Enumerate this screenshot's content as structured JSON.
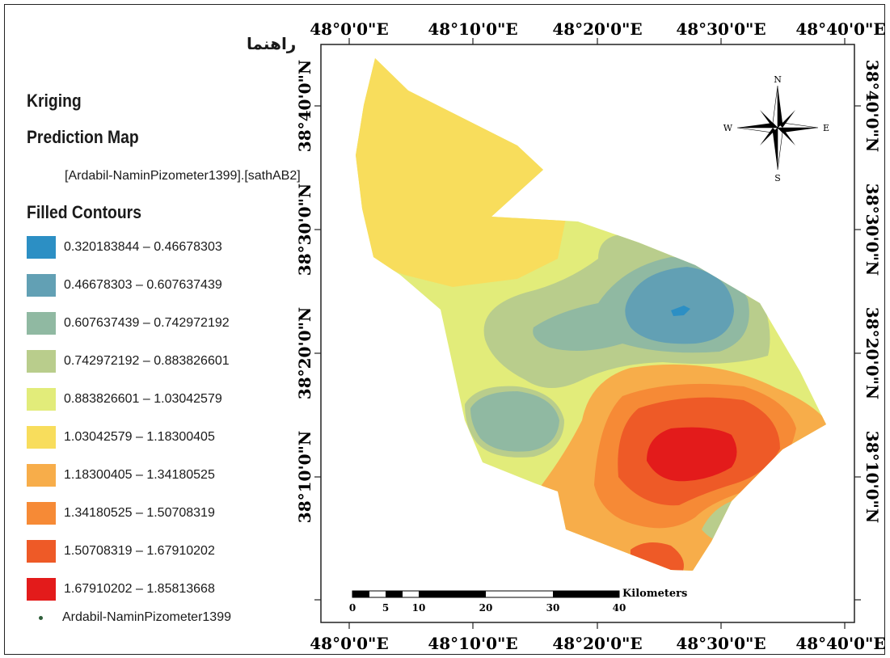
{
  "legend": {
    "guide_label": "راهنما",
    "title": "Kriging",
    "subtitle": "Prediction Map",
    "field": "[Ardabil-NaminPizometer1399].[sathAB2]",
    "contours_title": "Filled Contours",
    "classes": [
      {
        "label": "0.320183844 – 0.46678303",
        "color": "#2c8fc4"
      },
      {
        "label": "0.46678303 – 0.607637439",
        "color": "#62a0b4"
      },
      {
        "label": "0.607637439 – 0.742972192",
        "color": "#90b9a2"
      },
      {
        "label": "0.742972192 – 0.883826601",
        "color": "#b9cd8c"
      },
      {
        "label": "0.883826601 – 1.03042579",
        "color": "#e2ec7a"
      },
      {
        "label": "1.03042579 – 1.18300405",
        "color": "#f8dd5c"
      },
      {
        "label": "1.18300405 – 1.34180525",
        "color": "#f7ad4a"
      },
      {
        "label": "1.34180525 – 1.50708319",
        "color": "#f68a36"
      },
      {
        "label": "1.50708319 – 1.67910202",
        "color": "#ee5a27"
      },
      {
        "label": "1.67910202 – 1.85813668",
        "color": "#e31b1b"
      }
    ],
    "points_label": "Ardabil-NaminPizometer1399"
  },
  "map": {
    "lon_labels": [
      "48°0'0\"E",
      "48°10'0\"E",
      "48°20'0\"E",
      "48°30'0\"E",
      "48°40'0\"E"
    ],
    "lat_labels": [
      "38°40'0\"N",
      "38°30'0\"N",
      "38°20'0\"N",
      "38°10'0\"N"
    ],
    "north_arrow": {
      "n": "N",
      "s": "S",
      "e": "E",
      "w": "W"
    },
    "scale_bar": {
      "unit": "Kilometers",
      "ticks": [
        "0",
        "5",
        "10",
        "20",
        "30",
        "40"
      ]
    }
  }
}
